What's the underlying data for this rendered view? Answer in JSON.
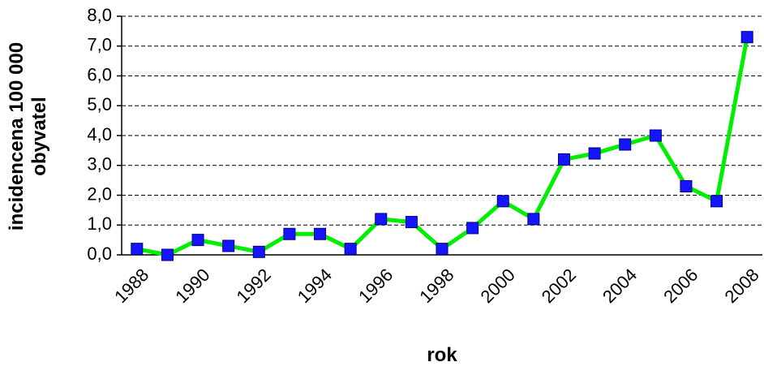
{
  "chart_data": {
    "type": "line",
    "x_label": "rok",
    "y_label": [
      "incidencena 100 000",
      "obyvatel"
    ],
    "categories": [
      "1988",
      null,
      "1990",
      null,
      "1992",
      null,
      "1994",
      null,
      "1996",
      null,
      "1998",
      null,
      "2000",
      null,
      "2002",
      null,
      "2004",
      null,
      "2006",
      null,
      "2008"
    ],
    "series": [
      {
        "name": null,
        "color": "#00ee00",
        "marker_color": "#1414ff",
        "values": [
          0.2,
          0.0,
          0.5,
          0.3,
          0.1,
          0.7,
          0.7,
          0.2,
          1.2,
          1.1,
          0.2,
          0.9,
          1.8,
          1.2,
          3.2,
          3.4,
          3.7,
          4.0,
          2.3,
          1.8,
          7.3
        ]
      }
    ],
    "ylim": [
      0,
      8
    ],
    "yticks": [
      {
        "value": 0,
        "label": "0,0"
      },
      {
        "value": 1,
        "label": "1,0"
      },
      {
        "value": 2,
        "label": "2,0"
      },
      {
        "value": 3,
        "label": "3,0"
      },
      {
        "value": 4,
        "label": "4,0"
      },
      {
        "value": 5,
        "label": "5,0"
      },
      {
        "value": 6,
        "label": "6,0"
      },
      {
        "value": 7,
        "label": "7,0"
      },
      {
        "value": 8,
        "label": "8,0"
      }
    ],
    "grid": true
  }
}
